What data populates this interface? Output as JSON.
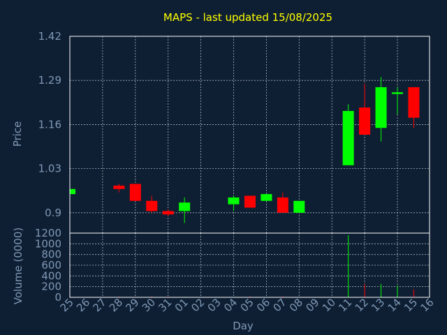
{
  "chart_data": {
    "type": "candlestick",
    "title": "MAPS - last updated 15/08/2025",
    "ylabel": "Price",
    "ylabel_volume": "Volume (0000)",
    "xlabel": "Day",
    "ylim": [
      0.84,
      1.42
    ],
    "ylim_volume": [
      0,
      1200
    ],
    "y_ticks": [
      "1.42",
      "1.29",
      "1.16",
      "1.03",
      "0.9"
    ],
    "y_tick_values": [
      1.42,
      1.29,
      1.16,
      1.03,
      0.9
    ],
    "volume_ticks": [
      "1200",
      "1000",
      "800",
      "600",
      "400",
      "200",
      "0"
    ],
    "volume_tick_values": [
      1200,
      1000,
      800,
      600,
      400,
      200,
      0
    ],
    "x_ticks": [
      "25",
      "26",
      "27",
      "28",
      "29",
      "30",
      "31",
      "01",
      "02",
      "03",
      "04",
      "05",
      "06",
      "07",
      "08",
      "09",
      "10",
      "11",
      "12",
      "13",
      "14",
      "15",
      "16"
    ],
    "grid": true,
    "up_color": "#00ff00",
    "down_color": "#ff0000",
    "candles": [
      {
        "x": "25",
        "open": 0.955,
        "high": 0.97,
        "low": 0.955,
        "close": 0.97,
        "volume": 0
      },
      {
        "x": "28",
        "open": 0.98,
        "high": 0.985,
        "low": 0.96,
        "close": 0.97,
        "volume": 15
      },
      {
        "x": "29",
        "open": 0.985,
        "high": 0.985,
        "low": 0.935,
        "close": 0.935,
        "volume": 10
      },
      {
        "x": "30",
        "open": 0.935,
        "high": 0.95,
        "low": 0.9,
        "close": 0.905,
        "volume": 20
      },
      {
        "x": "31",
        "open": 0.905,
        "high": 0.91,
        "low": 0.89,
        "close": 0.895,
        "volume": 15
      },
      {
        "x": "01",
        "open": 0.905,
        "high": 0.945,
        "low": 0.87,
        "close": 0.93,
        "volume": 10
      },
      {
        "x": "04",
        "open": 0.925,
        "high": 0.95,
        "low": 0.905,
        "close": 0.945,
        "volume": 5
      },
      {
        "x": "05",
        "open": 0.95,
        "high": 0.95,
        "low": 0.915,
        "close": 0.915,
        "volume": 20
      },
      {
        "x": "06",
        "open": 0.935,
        "high": 0.955,
        "low": 0.935,
        "close": 0.955,
        "volume": 5
      },
      {
        "x": "07",
        "open": 0.945,
        "high": 0.96,
        "low": 0.9,
        "close": 0.9,
        "volume": 20
      },
      {
        "x": "08",
        "open": 0.9,
        "high": 0.935,
        "low": 0.9,
        "close": 0.935,
        "volume": 5
      },
      {
        "x": "11",
        "open": 1.04,
        "high": 1.22,
        "low": 1.04,
        "close": 1.2,
        "volume": 1160
      },
      {
        "x": "12",
        "open": 1.21,
        "high": 1.28,
        "low": 1.13,
        "close": 1.13,
        "volume": 250
      },
      {
        "x": "13",
        "open": 1.15,
        "high": 1.3,
        "low": 1.11,
        "close": 1.27,
        "volume": 250
      },
      {
        "x": "14",
        "open": 1.25,
        "high": 1.27,
        "low": 1.19,
        "close": 1.255,
        "volume": 220
      },
      {
        "x": "15",
        "open": 1.27,
        "high": 1.27,
        "low": 1.15,
        "close": 1.18,
        "volume": 150
      }
    ]
  }
}
